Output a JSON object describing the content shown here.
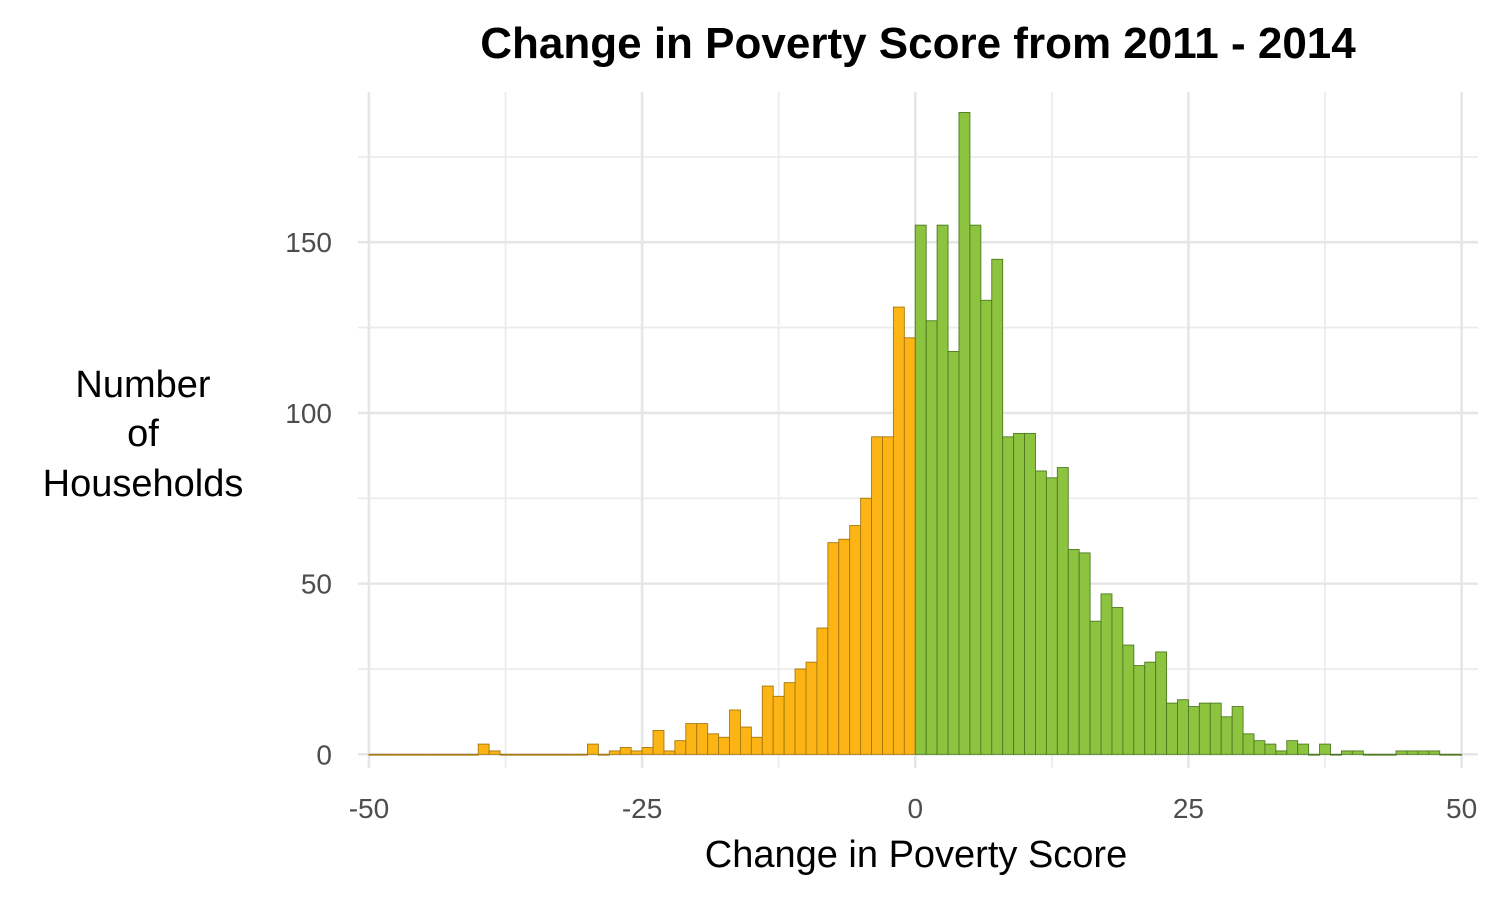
{
  "chart_data": {
    "type": "bar",
    "title": "Change in Poverty Score from 2011 - 2014",
    "xlabel": "Change in Poverty Score",
    "ylabel_lines": [
      "Number",
      "of",
      "Households"
    ],
    "xlim": [
      -51,
      51.5
    ],
    "ylim": [
      -4,
      194
    ],
    "x_ticks": [
      -50,
      -25,
      0,
      25,
      50
    ],
    "x_tick_labels": [
      "-50",
      "-25",
      "0",
      "25",
      "50"
    ],
    "y_ticks": [
      0,
      50,
      100,
      150
    ],
    "y_tick_labels": [
      "0",
      "50",
      "100",
      "150"
    ],
    "x_minor_ticks": [
      -37.5,
      -12.5,
      12.5,
      37.5
    ],
    "y_minor_ticks": [
      25,
      75,
      125,
      175
    ],
    "grid": true,
    "legend": "none",
    "bin_width": 1,
    "colors": {
      "negative_fill": "#FDB515",
      "negative_stroke": "#A6770B",
      "positive_fill": "#8CC43F",
      "positive_stroke": "#4E7A1F"
    },
    "series": [
      {
        "values": [
          {
            "x": -50,
            "y": 0
          },
          {
            "x": -49,
            "y": 0
          },
          {
            "x": -48,
            "y": 0
          },
          {
            "x": -47,
            "y": 0
          },
          {
            "x": -46,
            "y": 0
          },
          {
            "x": -45,
            "y": 0
          },
          {
            "x": -44,
            "y": 0
          },
          {
            "x": -43,
            "y": 0
          },
          {
            "x": -42,
            "y": 0
          },
          {
            "x": -41,
            "y": 0
          },
          {
            "x": -40,
            "y": 3
          },
          {
            "x": -39,
            "y": 1
          },
          {
            "x": -38,
            "y": 0
          },
          {
            "x": -37,
            "y": 0
          },
          {
            "x": -36,
            "y": 0
          },
          {
            "x": -35,
            "y": 0
          },
          {
            "x": -34,
            "y": 0
          },
          {
            "x": -33,
            "y": 0
          },
          {
            "x": -32,
            "y": 0
          },
          {
            "x": -31,
            "y": 0
          },
          {
            "x": -30,
            "y": 3
          },
          {
            "x": -29,
            "y": 0
          },
          {
            "x": -28,
            "y": 1
          },
          {
            "x": -27,
            "y": 2
          },
          {
            "x": -26,
            "y": 1
          },
          {
            "x": -25,
            "y": 2
          },
          {
            "x": -24,
            "y": 7
          },
          {
            "x": -23,
            "y": 1
          },
          {
            "x": -22,
            "y": 4
          },
          {
            "x": -21,
            "y": 9
          },
          {
            "x": -20,
            "y": 9
          },
          {
            "x": -19,
            "y": 6
          },
          {
            "x": -18,
            "y": 5
          },
          {
            "x": -17,
            "y": 13
          },
          {
            "x": -16,
            "y": 8
          },
          {
            "x": -15,
            "y": 5
          },
          {
            "x": -14,
            "y": 20
          },
          {
            "x": -13,
            "y": 17
          },
          {
            "x": -12,
            "y": 21
          },
          {
            "x": -11,
            "y": 25
          },
          {
            "x": -10,
            "y": 27
          },
          {
            "x": -9,
            "y": 37
          },
          {
            "x": -8,
            "y": 62
          },
          {
            "x": -7,
            "y": 63
          },
          {
            "x": -6,
            "y": 67
          },
          {
            "x": -5,
            "y": 75
          },
          {
            "x": -4,
            "y": 93
          },
          {
            "x": -3,
            "y": 93
          },
          {
            "x": -2,
            "y": 131
          },
          {
            "x": -1,
            "y": 122
          },
          {
            "x": 0,
            "y": 155
          },
          {
            "x": 1,
            "y": 127
          },
          {
            "x": 2,
            "y": 155
          },
          {
            "x": 3,
            "y": 118
          },
          {
            "x": 4,
            "y": 188
          },
          {
            "x": 5,
            "y": 155
          },
          {
            "x": 6,
            "y": 133
          },
          {
            "x": 7,
            "y": 145
          },
          {
            "x": 8,
            "y": 93
          },
          {
            "x": 9,
            "y": 94
          },
          {
            "x": 10,
            "y": 94
          },
          {
            "x": 11,
            "y": 83
          },
          {
            "x": 12,
            "y": 81
          },
          {
            "x": 13,
            "y": 84
          },
          {
            "x": 14,
            "y": 60
          },
          {
            "x": 15,
            "y": 59
          },
          {
            "x": 16,
            "y": 39
          },
          {
            "x": 17,
            "y": 47
          },
          {
            "x": 18,
            "y": 43
          },
          {
            "x": 19,
            "y": 32
          },
          {
            "x": 20,
            "y": 26
          },
          {
            "x": 21,
            "y": 27
          },
          {
            "x": 22,
            "y": 30
          },
          {
            "x": 23,
            "y": 15
          },
          {
            "x": 24,
            "y": 16
          },
          {
            "x": 25,
            "y": 14
          },
          {
            "x": 26,
            "y": 15
          },
          {
            "x": 27,
            "y": 15
          },
          {
            "x": 28,
            "y": 11
          },
          {
            "x": 29,
            "y": 14
          },
          {
            "x": 30,
            "y": 6
          },
          {
            "x": 31,
            "y": 4
          },
          {
            "x": 32,
            "y": 3
          },
          {
            "x": 33,
            "y": 1
          },
          {
            "x": 34,
            "y": 4
          },
          {
            "x": 35,
            "y": 3
          },
          {
            "x": 36,
            "y": 0
          },
          {
            "x": 37,
            "y": 3
          },
          {
            "x": 38,
            "y": 0
          },
          {
            "x": 39,
            "y": 1
          },
          {
            "x": 40,
            "y": 1
          },
          {
            "x": 41,
            "y": 0
          },
          {
            "x": 42,
            "y": 0
          },
          {
            "x": 43,
            "y": 0
          },
          {
            "x": 44,
            "y": 1
          },
          {
            "x": 45,
            "y": 1
          },
          {
            "x": 46,
            "y": 1
          },
          {
            "x": 47,
            "y": 1
          },
          {
            "x": 48,
            "y": 0
          },
          {
            "x": 49,
            "y": 0
          }
        ]
      }
    ]
  }
}
